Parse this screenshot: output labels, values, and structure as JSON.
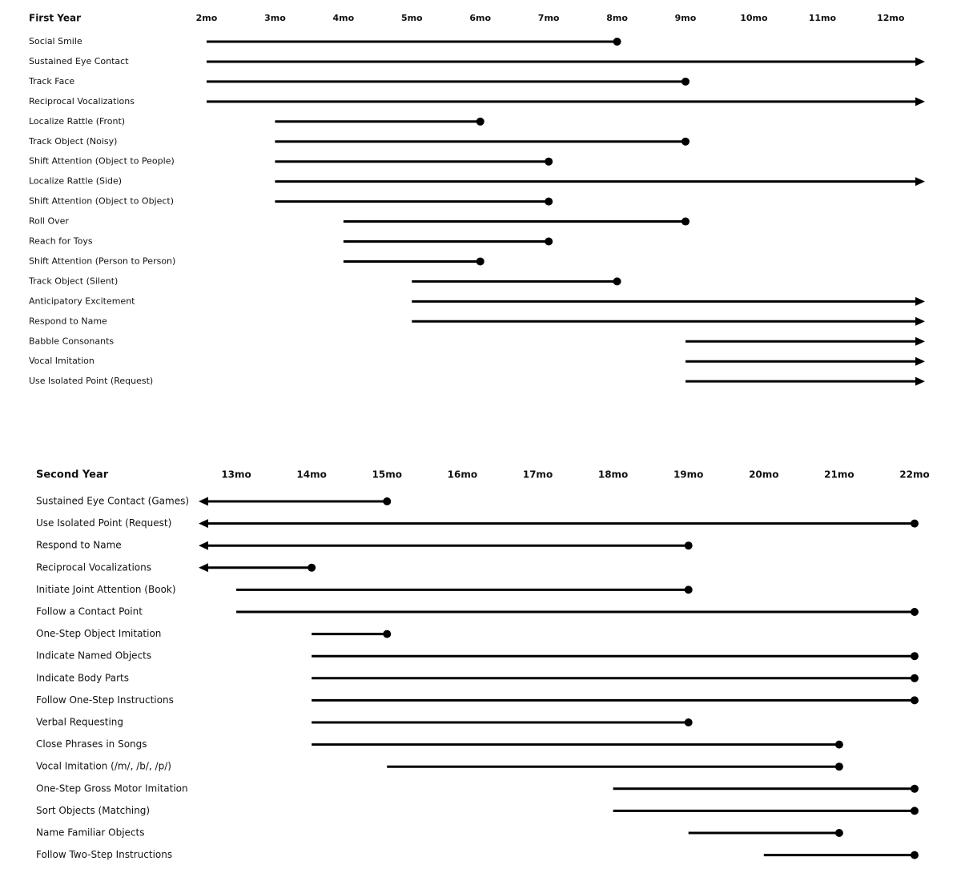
{
  "chart_data": [
    {
      "type": "timeline",
      "title": "First Year",
      "xlim": [
        2,
        12.5
      ],
      "xticks": [
        {
          "value": 2,
          "label": "2mo"
        },
        {
          "value": 3,
          "label": "3mo"
        },
        {
          "value": 4,
          "label": "4mo"
        },
        {
          "value": 5,
          "label": "5mo"
        },
        {
          "value": 6,
          "label": "6mo"
        },
        {
          "value": 7,
          "label": "7mo"
        },
        {
          "value": 8,
          "label": "8mo"
        },
        {
          "value": 9,
          "label": "9mo"
        },
        {
          "value": 10,
          "label": "10mo"
        },
        {
          "value": 11,
          "label": "11mo"
        },
        {
          "value": 12,
          "label": "12mo"
        }
      ],
      "categories": [
        "Social Smile",
        "Sustained Eye Contact",
        "Track Face",
        "Reciprocal Vocalizations",
        "Localize Rattle (Front)",
        "Track Object (Noisy)",
        "Shift Attention (Object to People)",
        "Localize Rattle (Side)",
        "Shift Attention (Object to Object)",
        "Roll Over",
        "Reach for Toys",
        "Shift Attention (Person to Person)",
        "Track Object (Silent)",
        "Anticipatory Excitement",
        "Respond to Name",
        "Babble Consonants",
        "Vocal Imitation",
        "Use Isolated Point (Request)"
      ],
      "start": [
        2,
        2,
        2,
        2,
        3,
        3,
        3,
        3,
        3,
        4,
        4,
        4,
        5,
        5,
        5,
        9,
        9,
        9
      ],
      "end": [
        8,
        null,
        9,
        null,
        6,
        9,
        7,
        null,
        7,
        9,
        7,
        6,
        8,
        null,
        null,
        null,
        null,
        null
      ],
      "color": "#000000"
    },
    {
      "type": "timeline",
      "title": "Second Year",
      "xlim": [
        12.5,
        22
      ],
      "xticks": [
        {
          "value": 13,
          "label": "13mo"
        },
        {
          "value": 14,
          "label": "14mo"
        },
        {
          "value": 15,
          "label": "15mo"
        },
        {
          "value": 16,
          "label": "16mo"
        },
        {
          "value": 17,
          "label": "17mo"
        },
        {
          "value": 18,
          "label": "18mo"
        },
        {
          "value": 19,
          "label": "19mo"
        },
        {
          "value": 20,
          "label": "20mo"
        },
        {
          "value": 21,
          "label": "21mo"
        },
        {
          "value": 22,
          "label": "22mo"
        }
      ],
      "categories": [
        "Sustained Eye Contact (Games)",
        "Use Isolated Point (Request)",
        "Respond to Name",
        "Reciprocal Vocalizations",
        "Initiate Joint Attention (Book)",
        "Follow a Contact Point",
        "One-Step Object Imitation",
        "Indicate Named Objects",
        "Indicate Body Parts",
        "Follow One-Step Instructions",
        "Verbal Requesting",
        "Close Phrases in Songs",
        "Vocal Imitation (/m/, /b/, /p/)",
        "One-Step Gross Motor Imitation",
        "Sort Objects (Matching)",
        "Name Familiar Objects",
        "Follow Two-Step Instructions"
      ],
      "start": [
        null,
        null,
        null,
        null,
        13,
        13,
        14,
        14,
        14,
        14,
        14,
        14,
        15,
        18,
        18,
        19,
        20
      ],
      "end": [
        15,
        22,
        19,
        14,
        19,
        22,
        15,
        22,
        22,
        22,
        19,
        21,
        21,
        22,
        22,
        21,
        22
      ],
      "color": "#000000"
    }
  ]
}
